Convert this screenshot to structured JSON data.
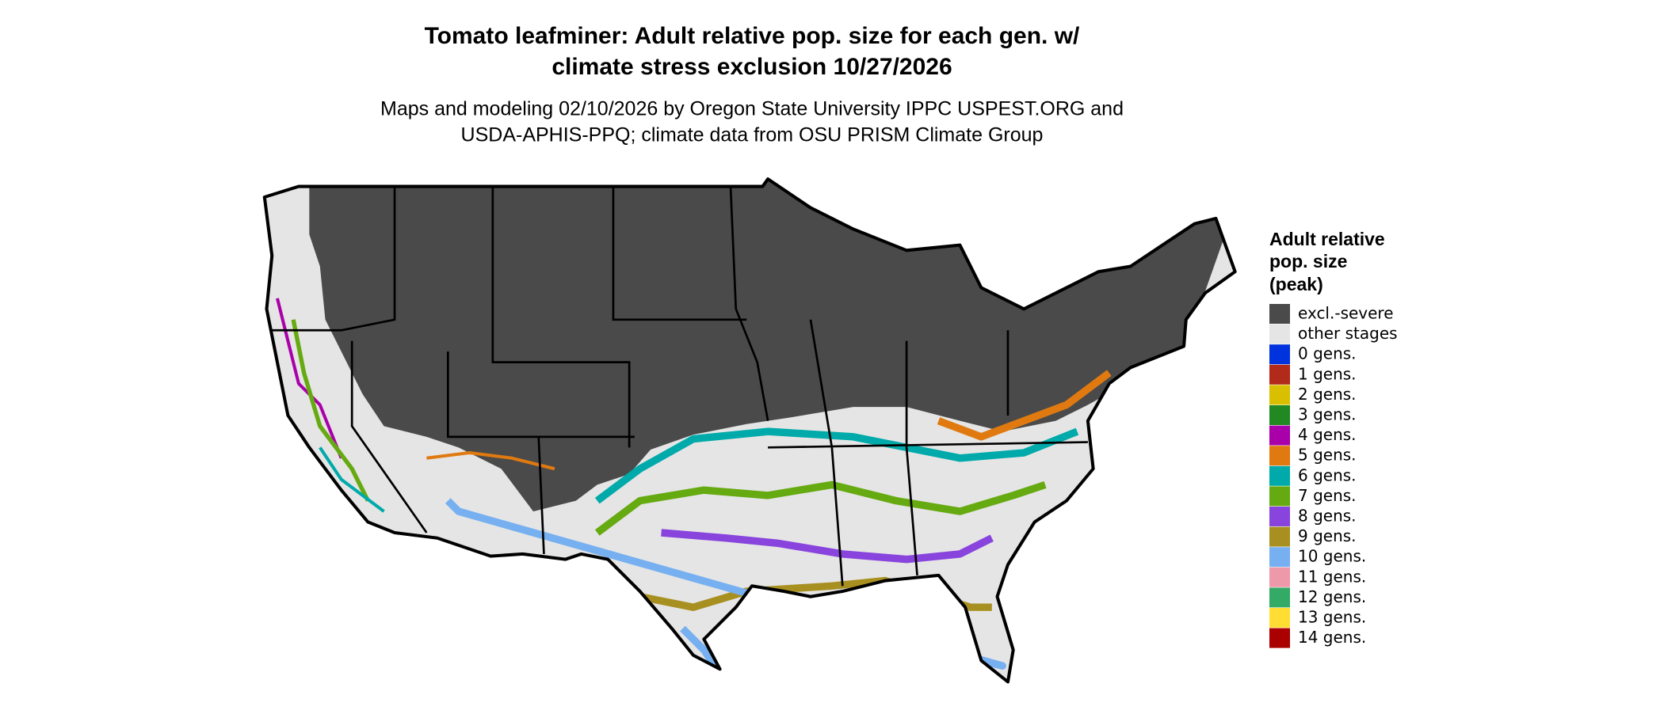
{
  "title": [
    "Tomato leafminer: Adult relative pop. size for each gen. w/",
    "climate stress exclusion 10/27/2026"
  ],
  "subtitle": [
    "Maps and modeling 02/10/2026 by Oregon State University IPPC USPEST.ORG and",
    "USDA-APHIS-PPQ; climate data from OSU PRISM Climate Group"
  ],
  "legend": {
    "title": [
      "Adult relative",
      "pop. size",
      "(peak)"
    ],
    "items": [
      {
        "label": "excl.-severe",
        "color": "#4a4a4a"
      },
      {
        "label": "other stages",
        "color": "#e5e5e5"
      },
      {
        "label": "0 gens.",
        "color": "#0033dd"
      },
      {
        "label": "1 gens.",
        "color": "#b22a1a"
      },
      {
        "label": "2 gens.",
        "color": "#d8c000"
      },
      {
        "label": "3 gens.",
        "color": "#228822"
      },
      {
        "label": "4 gens.",
        "color": "#aa00aa"
      },
      {
        "label": "5 gens.",
        "color": "#e07a10"
      },
      {
        "label": "6 gens.",
        "color": "#00aaaa"
      },
      {
        "label": "7 gens.",
        "color": "#66aa11"
      },
      {
        "label": "8 gens.",
        "color": "#8844dd"
      },
      {
        "label": "9 gens.",
        "color": "#a89020"
      },
      {
        "label": "10 gens.",
        "color": "#77b0f0"
      },
      {
        "label": "11 gens.",
        "color": "#ee99aa"
      },
      {
        "label": "12 gens.",
        "color": "#33aa66"
      },
      {
        "label": "13 gens.",
        "color": "#ffdd33"
      },
      {
        "label": "14 gens.",
        "color": "#aa0000"
      }
    ]
  }
}
